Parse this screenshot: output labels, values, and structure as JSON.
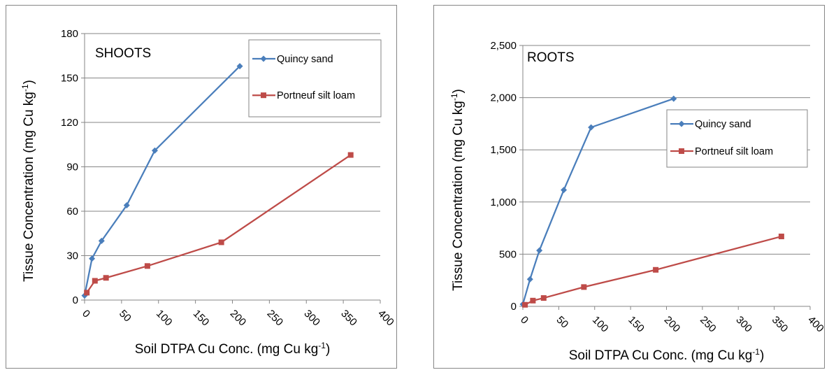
{
  "chart_data": [
    {
      "type": "line",
      "title": "SHOOTS",
      "xlabel": "Soil DTPA Cu Conc. (mg Cu kg",
      "xlabel_sup": "-1",
      "xlabel_tail": ")",
      "ylabel": "Tissue Concentration (mg Cu kg",
      "ylabel_sup": "-1",
      "ylabel_tail": ")",
      "xlim": [
        0,
        400
      ],
      "ylim": [
        0,
        180
      ],
      "x_ticks": [
        "0",
        "50",
        "100",
        "150",
        "200",
        "250",
        "300",
        "350",
        "400"
      ],
      "y_ticks": [
        "0",
        "30",
        "60",
        "90",
        "120",
        "150",
        "180"
      ],
      "grid": "horizontal",
      "legend_position": "top-right",
      "series": [
        {
          "name": "Quincy sand",
          "color": "#4a7ebb",
          "marker": "diamond",
          "x": [
            0,
            10,
            23,
            57,
            95,
            210
          ],
          "y": [
            3,
            28,
            40,
            64,
            101,
            158
          ]
        },
        {
          "name": "Portneuf silt loam",
          "color": "#be4b48",
          "marker": "square",
          "x": [
            3,
            14,
            29,
            85,
            185,
            360
          ],
          "y": [
            5,
            13,
            15,
            23,
            39,
            98
          ]
        }
      ]
    },
    {
      "type": "line",
      "title": "ROOTS",
      "xlabel": "Soil DTPA Cu Conc. (mg Cu kg",
      "xlabel_sup": "-1",
      "xlabel_tail": ")",
      "ylabel": "Tissue Concentration (mg Cu kg",
      "ylabel_sup": "-1",
      "ylabel_tail": ")",
      "xlim": [
        0,
        400
      ],
      "ylim": [
        0,
        2500
      ],
      "x_ticks": [
        "0",
        "50",
        "100",
        "150",
        "200",
        "250",
        "300",
        "350",
        "400"
      ],
      "y_ticks": [
        "0",
        "500",
        "1,000",
        "1,500",
        "2,000",
        "2,500"
      ],
      "grid": "horizontal",
      "legend_position": "right",
      "series": [
        {
          "name": "Quincy sand",
          "color": "#4a7ebb",
          "marker": "diamond",
          "x": [
            0,
            10,
            23,
            57,
            95,
            210
          ],
          "y": [
            20,
            260,
            535,
            1115,
            1715,
            1990
          ]
        },
        {
          "name": "Portneuf silt loam",
          "color": "#be4b48",
          "marker": "square",
          "x": [
            3,
            14,
            29,
            85,
            185,
            360
          ],
          "y": [
            15,
            55,
            80,
            185,
            350,
            670
          ]
        }
      ]
    }
  ]
}
